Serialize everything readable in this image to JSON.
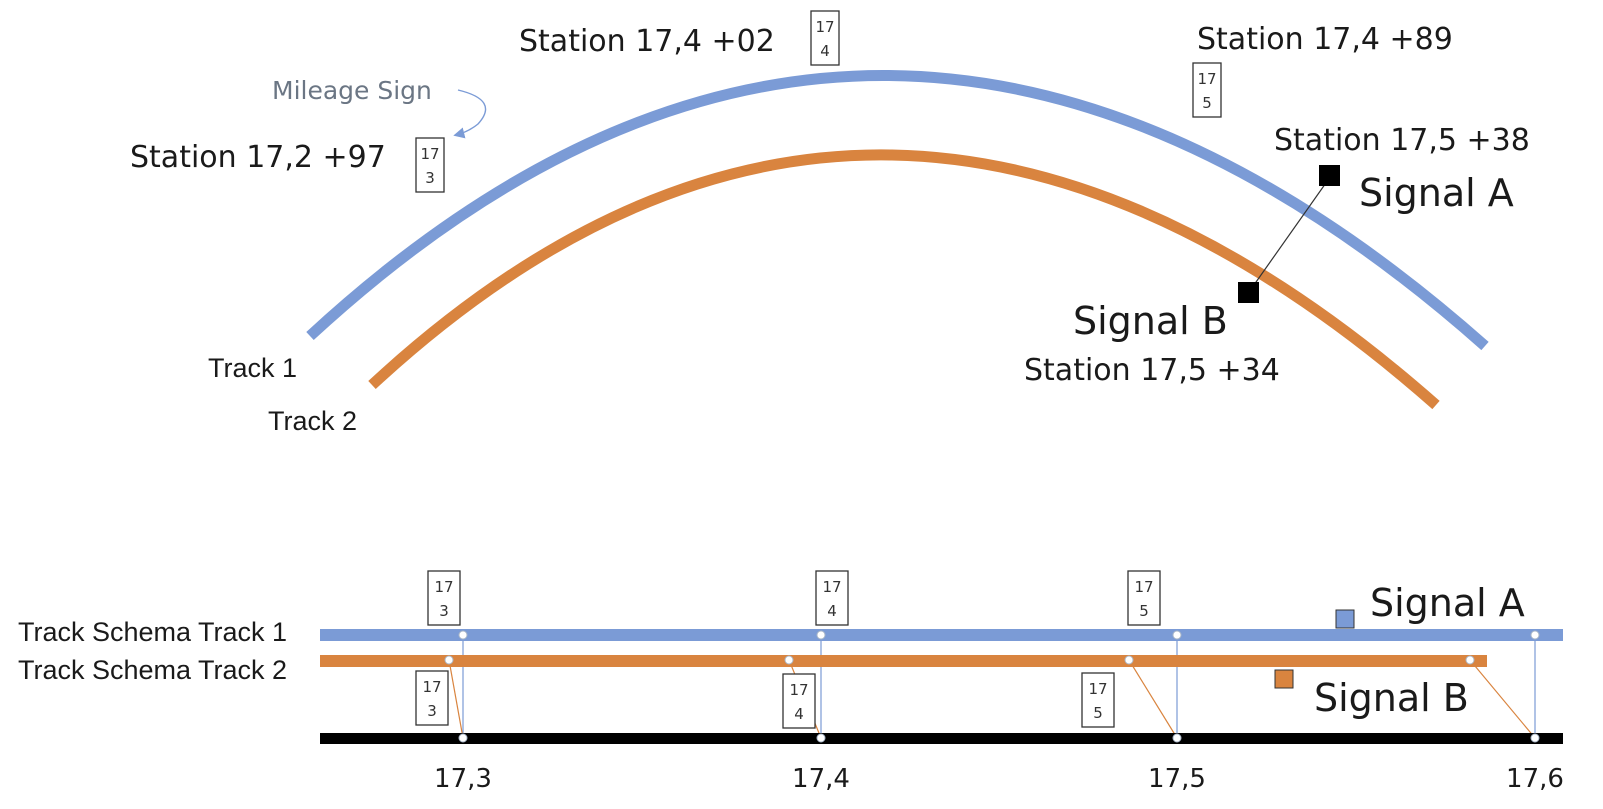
{
  "colors": {
    "track1": "#7b9bd6",
    "track2": "#d9843f",
    "axis": "#000000",
    "signal_curved": "#000000",
    "signal_a_schema": "#7b9bd6",
    "signal_b_schema": "#d9843f"
  },
  "curved": {
    "track1_label": "Track 1",
    "track2_label": "Track 2",
    "mileage_note": "Mileage Sign",
    "stations": [
      "Station 17,2 +97",
      "Station 17,4 +02",
      "Station 17,4 +89",
      "Station 17,5 +38",
      "Station 17,5 +34"
    ],
    "signs": [
      {
        "top": "17",
        "bottom": "3"
      },
      {
        "top": "17",
        "bottom": "4"
      },
      {
        "top": "17",
        "bottom": "5"
      }
    ],
    "signal_a": "Signal A",
    "signal_b": "Signal B"
  },
  "schema": {
    "track1_label": "Track Schema Track 1",
    "track2_label": "Track Schema Track 2",
    "signal_a": "Signal A",
    "signal_b": "Signal B",
    "track1_signs": [
      {
        "top": "17",
        "bottom": "3"
      },
      {
        "top": "17",
        "bottom": "4"
      },
      {
        "top": "17",
        "bottom": "5"
      }
    ],
    "track2_signs": [
      {
        "top": "17",
        "bottom": "3"
      },
      {
        "top": "17",
        "bottom": "4"
      },
      {
        "top": "17",
        "bottom": "5"
      }
    ],
    "axis_ticks": [
      "17,3",
      "17,4",
      "17,5",
      "17,6"
    ]
  }
}
